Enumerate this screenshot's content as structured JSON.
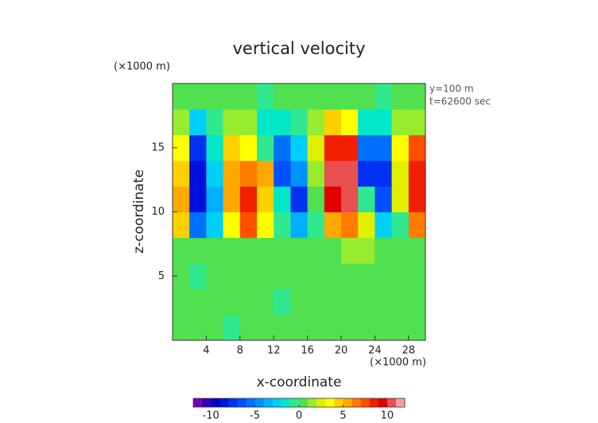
{
  "chart_data": {
    "type": "contour",
    "title": "vertical velocity",
    "y_unit": "(×1000 m)",
    "x_unit": "(×1000 m)",
    "annotations": [
      "y=100 m",
      "t=62600 sec"
    ],
    "xlabel": "x-coordinate",
    "ylabel": "z-coordinate",
    "xlim": [
      0,
      30
    ],
    "ylim": [
      0,
      20
    ],
    "xticks": [
      4,
      8,
      12,
      16,
      20,
      24,
      28
    ],
    "yticks": [
      5,
      10,
      15
    ],
    "x": [
      1,
      3,
      5,
      7,
      9,
      11,
      13,
      15,
      17,
      19,
      21,
      23,
      25,
      27,
      29
    ],
    "y": [
      1,
      3,
      5,
      7,
      9,
      11,
      13,
      15,
      17,
      19
    ],
    "z": [
      [
        0,
        0,
        0,
        -1,
        0,
        0,
        0,
        0,
        0,
        0,
        0,
        0,
        0,
        0,
        0
      ],
      [
        0,
        0,
        0,
        0,
        0,
        0,
        -1,
        0,
        0,
        0,
        0,
        0,
        0,
        0,
        0
      ],
      [
        0,
        -1,
        0,
        0,
        0,
        0,
        0,
        0,
        0,
        0,
        0,
        0,
        0,
        0,
        0
      ],
      [
        0,
        0,
        0,
        0,
        0,
        0,
        0,
        0,
        0,
        0,
        1,
        1,
        0,
        0,
        0
      ],
      [
        4,
        -6,
        -3,
        3,
        7,
        3,
        -1,
        -4,
        -1,
        5,
        6,
        2,
        -3,
        -1,
        6
      ],
      [
        5,
        -9,
        -4,
        5,
        8,
        4,
        -2,
        -8,
        0,
        9,
        10,
        -1,
        -7,
        2,
        8
      ],
      [
        4,
        -9,
        -3,
        5,
        6,
        5,
        -7,
        -5,
        1,
        10,
        10,
        -8,
        -8,
        2,
        8
      ],
      [
        3,
        -8,
        -2,
        4,
        3,
        -1,
        -6,
        -3,
        2,
        8,
        8,
        -6,
        -6,
        3,
        7
      ],
      [
        1,
        -3,
        -1,
        1,
        1,
        -2,
        -2,
        -1,
        1,
        4,
        3,
        -2,
        -2,
        1,
        1
      ],
      [
        0,
        0,
        0,
        0,
        0,
        -1,
        0,
        0,
        0,
        0,
        0,
        0,
        -1,
        0,
        0
      ]
    ],
    "clim": [
      -12,
      12
    ],
    "colorscale": [
      "#7a00b8",
      "#3a00b0",
      "#0000c0",
      "#0010dc",
      "#0030f0",
      "#0050ff",
      "#0070ff",
      "#0090ff",
      "#00b0ff",
      "#00d0f8",
      "#00e8c8",
      "#30e890",
      "#50e050",
      "#98ec30",
      "#e0f000",
      "#ffff00",
      "#ffd000",
      "#ffa800",
      "#ff7c00",
      "#ff5000",
      "#f02000",
      "#e00000",
      "#e85050",
      "#f4a0a0"
    ],
    "colorbar_ticks": [
      -10,
      -5,
      0,
      5,
      10
    ]
  }
}
